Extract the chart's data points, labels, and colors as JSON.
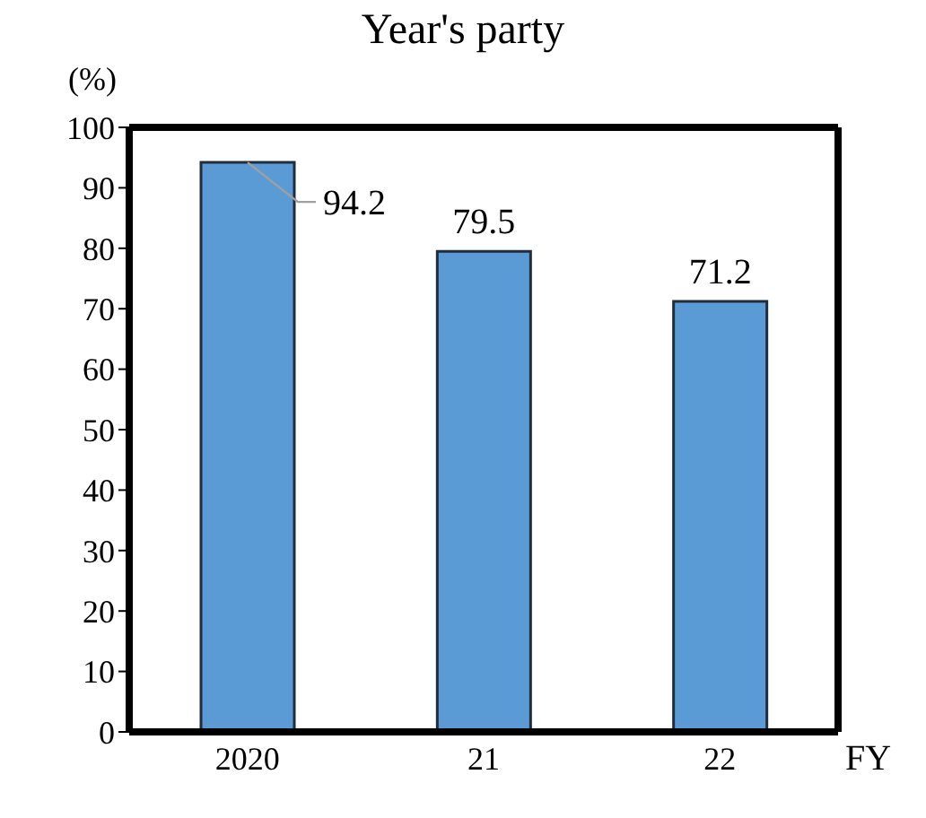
{
  "chart_data": {
    "type": "bar",
    "title": "Year's party",
    "ylabel": "(%)",
    "xlabel": "FY",
    "categories": [
      "2020",
      "21",
      "22"
    ],
    "values": [
      94.2,
      79.5,
      71.2
    ],
    "color": "#5b9bd5",
    "ylim": [
      0,
      100
    ],
    "yticks": [
      0,
      10,
      20,
      30,
      40,
      50,
      60,
      70,
      80,
      90,
      100
    ],
    "data_labels": true,
    "grid": false,
    "legend": false
  }
}
